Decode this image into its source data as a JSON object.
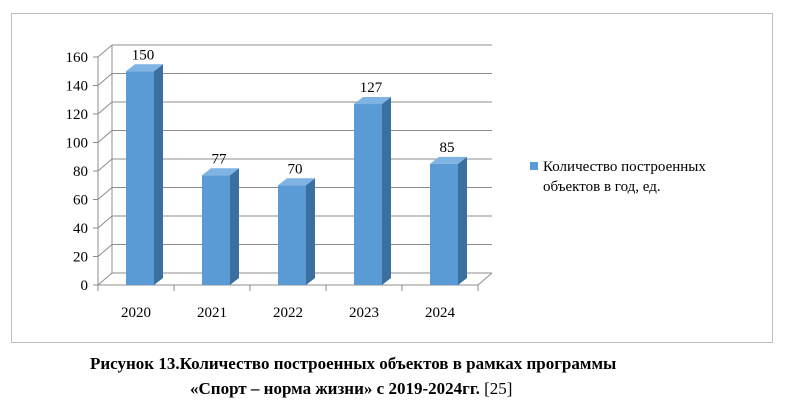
{
  "chart_data": {
    "type": "bar",
    "style": "3d-column",
    "categories": [
      "2020",
      "2021",
      "2022",
      "2023",
      "2024"
    ],
    "series": [
      {
        "name": "Количество построенных объектов в год, ед.",
        "values": [
          150,
          77,
          70,
          127,
          85
        ],
        "color": "#5b9bd5"
      }
    ],
    "ylim": [
      0,
      160
    ],
    "yticks": [
      "0",
      "20",
      "40",
      "60",
      "80",
      "100",
      "120",
      "140",
      "160"
    ],
    "grid": true,
    "legend_position": "right",
    "legend_lines": [
      "Количество построенных",
      "объектов в год, ед."
    ]
  },
  "caption": {
    "line1": "Рисунок 13.Количество построенных объектов в рамках программы",
    "line2_bold": "«Спорт – норма жизни» с 2019-2024гг.",
    "line2_ref": " [25]"
  },
  "colors": {
    "bar_front": "#5b9bd5",
    "bar_side": "#3a6f9f",
    "bar_top": "#7fb3e3",
    "grid": "#8c8c8c",
    "border": "#bfbfbf"
  }
}
